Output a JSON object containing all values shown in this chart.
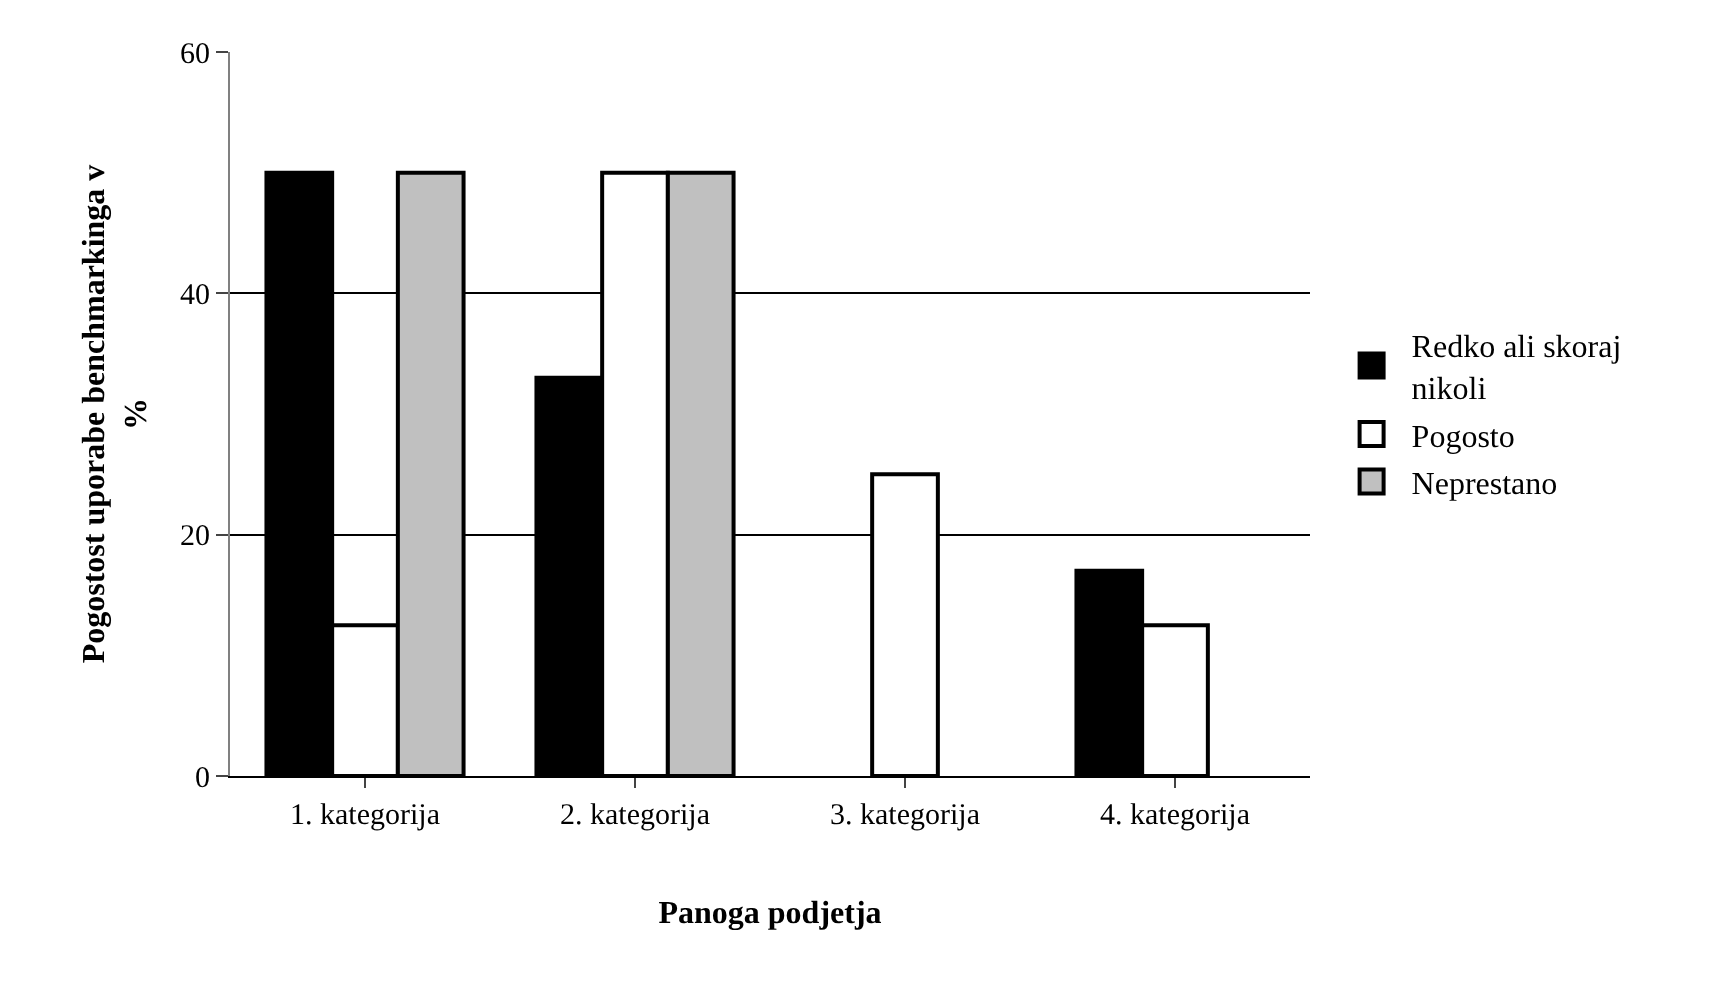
{
  "chart_data": {
    "type": "bar",
    "xlabel": "Panoga podjetja",
    "ylabel": "Pogostost uporabe benchmarkinga v %",
    "categories": [
      "1. kategorija",
      "2. kategorija",
      "3. kategorija",
      "4. kategorija"
    ],
    "series": [
      {
        "name": "Redko ali skoraj nikoli",
        "color": "#000000",
        "values": [
          50,
          33,
          0,
          17
        ]
      },
      {
        "name": "Pogosto",
        "color": "#ffffff",
        "values": [
          12.5,
          50,
          25,
          12.5
        ]
      },
      {
        "name": "Neprestano",
        "color": "#c0c0c0",
        "values": [
          50,
          50,
          0,
          0
        ]
      }
    ],
    "ylim": [
      0,
      60
    ],
    "yticks": [
      0,
      20,
      40,
      60
    ],
    "grid": "y",
    "legend": "right"
  }
}
